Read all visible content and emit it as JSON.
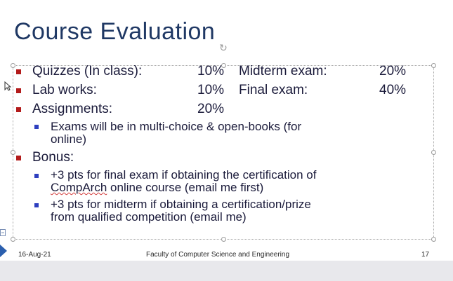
{
  "slide": {
    "title": "Course Evaluation",
    "grading": [
      {
        "label": "Quizzes (In class):",
        "pct": "10%",
        "label2": "Midterm exam:",
        "pct2": "20%"
      },
      {
        "label": "Lab works:",
        "pct": "10%",
        "label2": "Final exam:",
        "pct2": "40%"
      },
      {
        "label": "Assignments:",
        "pct": "20%"
      }
    ],
    "assignments_note_line1": "Exams will be in multi-choice & open-books (for",
    "assignments_note_line2": "online)",
    "bonus_label": "Bonus:",
    "bonus_items": [
      {
        "line1": "+3 pts for final exam if obtaining the certification of",
        "line2_a": "CompArch",
        "line2_b": " online course (email me first)"
      },
      {
        "line1": "+3 pts for midterm if obtaining a certification/prize",
        "line2": "from qualified competition (email me)"
      }
    ]
  },
  "footer": {
    "date": "16-Aug-21",
    "center": "Faculty of Computer Science and Engineering",
    "page": "17"
  },
  "colors": {
    "title": "#1f3864",
    "bullet_level1": "#b31b1b",
    "bullet_level2": "#2e3fbf"
  }
}
